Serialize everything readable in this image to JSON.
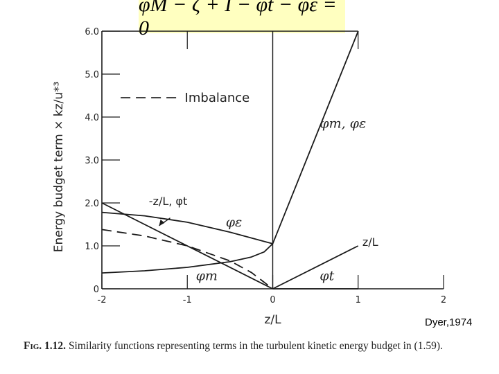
{
  "equation": {
    "text": "φM − ζ + I − φt − φε = 0"
  },
  "credit": "Dyer,1974",
  "caption": {
    "label": "Fig. 1.12.",
    "text": "Similarity functions representing terms in the turbulent kinetic energy budget in (1.59)."
  },
  "chart_data": {
    "type": "line",
    "xlabel": "z/L",
    "ylabel": "Energy budget term × kz/u*³",
    "xlim": [
      -2,
      2
    ],
    "ylim": [
      0,
      6
    ],
    "x_ticks": [
      "-2",
      "-1",
      "0",
      "1",
      "2"
    ],
    "y_ticks": [
      "0",
      "1.0",
      "2.0",
      "3.0",
      "4.0",
      "5.0",
      "6.0"
    ],
    "legend": {
      "label": "Imbalance",
      "style": "dashed",
      "placement": "upper-left"
    },
    "series": [
      {
        "name": "φm, φε",
        "style": "solid",
        "x": [
          0.0,
          1.0
        ],
        "y": [
          1.05,
          6.0
        ]
      },
      {
        "name": "φε",
        "style": "solid",
        "x": [
          -2.0,
          -1.5,
          -1.0,
          -0.5,
          0.0
        ],
        "y": [
          1.78,
          1.7,
          1.55,
          1.32,
          1.05
        ]
      },
      {
        "name": "φm",
        "style": "solid",
        "x": [
          -2.0,
          -1.5,
          -1.0,
          -0.5,
          -0.25,
          -0.1,
          0.0
        ],
        "y": [
          0.37,
          0.42,
          0.5,
          0.63,
          0.74,
          0.86,
          1.05
        ]
      },
      {
        "name": "-z/L, φt",
        "style": "solid",
        "x": [
          -2.0,
          0.0
        ],
        "y": [
          2.0,
          0.0
        ]
      },
      {
        "name": "z/L",
        "style": "solid",
        "x": [
          0.0,
          1.0
        ],
        "y": [
          0.0,
          1.0
        ]
      },
      {
        "name": "φt",
        "style": "solid",
        "x": [
          0.0,
          1.0
        ],
        "y": [
          0.0,
          0.0
        ]
      },
      {
        "name": "Imbalance",
        "style": "dashed",
        "x": [
          -2.0,
          -1.5,
          -1.0,
          -0.5,
          -0.25,
          0.0
        ],
        "y": [
          1.38,
          1.23,
          1.0,
          0.65,
          0.38,
          0.0
        ]
      }
    ],
    "annotations": [
      {
        "text": "φm, φε",
        "x": 0.55,
        "y": 3.75
      },
      {
        "text": "φε",
        "x": -0.55,
        "y": 1.45
      },
      {
        "text": "φm",
        "x": -0.9,
        "y": 0.2
      },
      {
        "text": "-z/L, φt",
        "x": -1.45,
        "y": 1.95
      },
      {
        "text": "z/L",
        "x": 1.05,
        "y": 1.0
      },
      {
        "text": "φt",
        "x": 0.55,
        "y": 0.2
      }
    ]
  }
}
